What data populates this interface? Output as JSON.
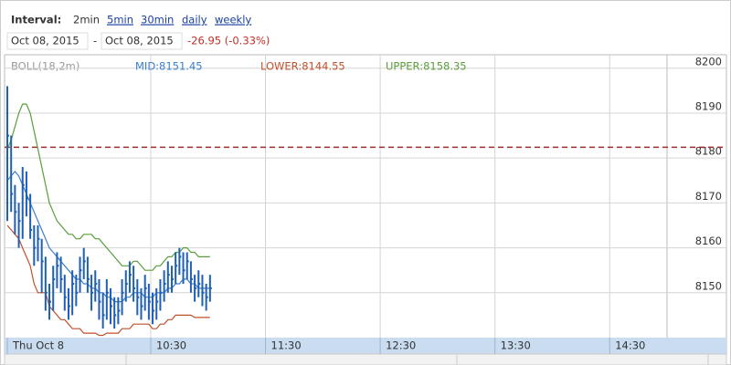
{
  "header": {
    "interval_label": "Interval:",
    "intervals": [
      "2min",
      "5min",
      "30min",
      "daily",
      "weekly"
    ],
    "from": "Oct 08, 2015",
    "separator": "-",
    "to": "Oct 08, 2015",
    "change": "-26.95 (-0.33%)"
  },
  "chart_data": {
    "type": "hlc",
    "indicator": "BOLL(18,2m)",
    "xlim": [
      "09:15",
      "15:00"
    ],
    "xticks": [
      {
        "value": "09:15",
        "label": "Thu Oct 8"
      },
      "10:30",
      "11:30",
      "12:30",
      "13:30",
      "14:30"
    ],
    "ylim": [
      8140,
      8203
    ],
    "yticks": [
      8150,
      8160,
      8170,
      8180,
      8190,
      8200
    ],
    "grid": true,
    "x": [
      "09:15",
      "09:17",
      "09:19",
      "09:21",
      "09:23",
      "09:25",
      "09:27",
      "09:29",
      "09:31",
      "09:33",
      "09:35",
      "09:37",
      "09:39",
      "09:41",
      "09:43",
      "09:45",
      "09:47",
      "09:49",
      "09:51",
      "09:53",
      "09:55",
      "09:57",
      "09:59",
      "10:01",
      "10:03",
      "10:05",
      "10:07",
      "10:09",
      "10:11",
      "10:13",
      "10:15",
      "10:17",
      "10:19",
      "10:21",
      "10:23",
      "10:25",
      "10:27",
      "10:29",
      "10:31",
      "10:33",
      "10:35",
      "10:37",
      "10:39",
      "10:41",
      "10:43",
      "10:45",
      "10:47",
      "10:49",
      "10:51",
      "10:53",
      "10:55",
      "10:57",
      "10:59",
      "11:01"
    ],
    "price": {
      "color": "#1f5fb4",
      "high": [
        8196,
        8185,
        8174,
        8170,
        8178,
        8177,
        8172,
        8165,
        8165,
        8162,
        8158,
        8152,
        8156,
        8159,
        8158,
        8154,
        8151,
        8155,
        8154,
        8158,
        8160,
        8158,
        8154,
        8155,
        8153,
        8150,
        8153,
        8151,
        8149,
        8149,
        8153,
        8155,
        8157,
        8156,
        8153,
        8151,
        8154,
        8152,
        8150,
        8151,
        8153,
        8155,
        8157,
        8156,
        8159,
        8160,
        8159,
        8159,
        8157,
        8154,
        8155,
        8154,
        8152,
        8154
      ],
      "low": [
        8166,
        8168,
        8163,
        8160,
        8162,
        8167,
        8162,
        8156,
        8157,
        8150,
        8146,
        8144,
        8146,
        8151,
        8150,
        8146,
        8144,
        8145,
        8147,
        8150,
        8153,
        8150,
        8146,
        8148,
        8144,
        8142,
        8144,
        8143,
        8142,
        8143,
        8145,
        8148,
        8150,
        8148,
        8145,
        8144,
        8146,
        8144,
        8143,
        8144,
        8146,
        8148,
        8150,
        8150,
        8152,
        8154,
        8152,
        8153,
        8150,
        8148,
        8149,
        8147,
        8146,
        8148
      ],
      "close": [
        8185,
        8172,
        8168,
        8166,
        8174,
        8171,
        8164,
        8160,
        8162,
        8157,
        8150,
        8148,
        8153,
        8156,
        8153,
        8149,
        8147,
        8152,
        8150,
        8155,
        8157,
        8153,
        8150,
        8152,
        8148,
        8145,
        8150,
        8147,
        8145,
        8146,
        8150,
        8152,
        8154,
        8151,
        8149,
        8147,
        8151,
        8148,
        8146,
        8148,
        8150,
        8152,
        8154,
        8153,
        8156,
        8158,
        8155,
        8157,
        8153,
        8151,
        8152,
        8150,
        8149,
        8151
      ]
    },
    "bands": [
      {
        "name": "MID:8151.45",
        "color": "#3a7fcc",
        "values": [
          8175,
          8176,
          8177,
          8176,
          8174,
          8172,
          8170,
          8168,
          8166,
          8164,
          8162,
          8160,
          8159,
          8158,
          8157,
          8156,
          8155,
          8154,
          8153,
          8153,
          8152,
          8152,
          8151,
          8151,
          8150,
          8150,
          8149,
          8149,
          8148,
          8148,
          8148,
          8149,
          8149,
          8150,
          8150,
          8150,
          8149,
          8149,
          8149,
          8150,
          8150,
          8150,
          8151,
          8151,
          8152,
          8152,
          8153,
          8153,
          8152,
          8152,
          8151,
          8151,
          8151,
          8151
        ]
      },
      {
        "name": "LOWER:8144.55",
        "color": "#c0502a",
        "values": [
          8165,
          8164,
          8163,
          8162,
          8160,
          8158,
          8156,
          8152,
          8150,
          8150,
          8150,
          8147,
          8146,
          8145,
          8144,
          8144,
          8143,
          8142,
          8142,
          8142,
          8141,
          8141,
          8141,
          8141,
          8140.5,
          8140.5,
          8141,
          8141,
          8141,
          8141,
          8142,
          8142,
          8142,
          8143,
          8143,
          8143,
          8143,
          8143,
          8142,
          8142,
          8143,
          8143,
          8144,
          8144,
          8145,
          8145,
          8145,
          8145,
          8145,
          8144.5,
          8144.5,
          8144.5,
          8144.5,
          8144.5
        ]
      },
      {
        "name": "UPPER:8158.35",
        "color": "#5a9e3a",
        "values": [
          8182,
          8184,
          8187,
          8190,
          8192,
          8192,
          8190,
          8186,
          8182,
          8178,
          8174,
          8170,
          8168,
          8166,
          8165,
          8164,
          8163,
          8163,
          8162,
          8162,
          8163,
          8163,
          8163,
          8162,
          8162,
          8161,
          8160,
          8159,
          8158,
          8157,
          8156,
          8156,
          8156,
          8157,
          8157,
          8156,
          8155,
          8155,
          8155,
          8156,
          8156,
          8157,
          8158,
          8158,
          8159,
          8159,
          8160,
          8160,
          8159,
          8159,
          8158,
          8158,
          8158,
          8158
        ]
      }
    ],
    "ref_line": {
      "value": 8182.4,
      "color": "#a52a2a"
    }
  }
}
